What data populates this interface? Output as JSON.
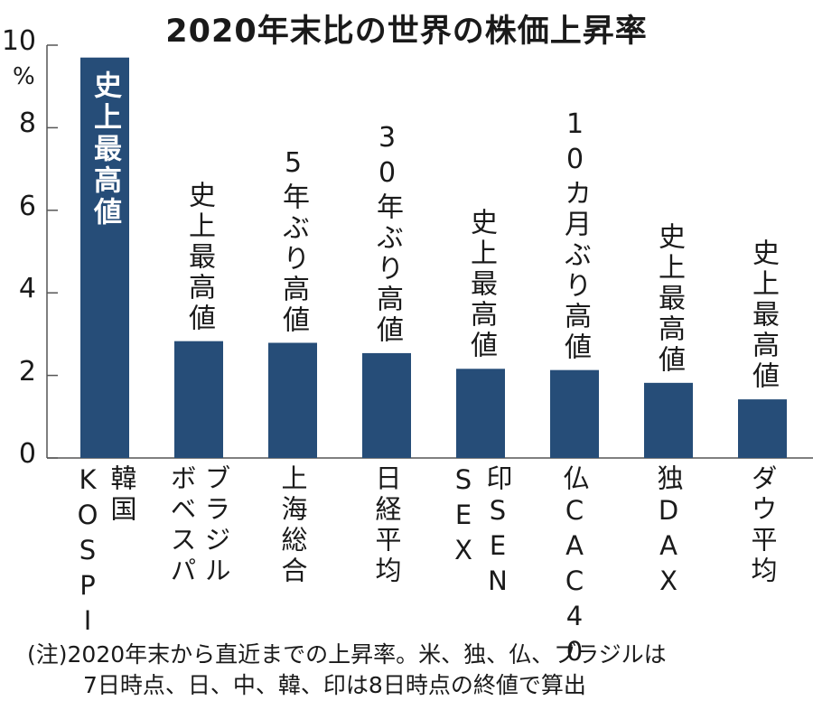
{
  "chart_data": {
    "type": "bar",
    "title": "2020年末比の世界の株価上昇率",
    "ylabel": "%",
    "ylim": [
      0,
      10
    ],
    "yticks": [
      0,
      2,
      4,
      6,
      8,
      10
    ],
    "grid": false,
    "bar_color": "#264d78",
    "categories": [
      {
        "lines": [
          "韓国",
          "KOSPI"
        ]
      },
      {
        "lines": [
          "ブラジル",
          "ボベスパ"
        ]
      },
      {
        "lines": [
          "上海総合"
        ]
      },
      {
        "lines": [
          "日経平均"
        ]
      },
      {
        "lines": [
          "印SEN",
          "SEX"
        ]
      },
      {
        "lines": [
          "仏CAC40"
        ]
      },
      {
        "lines": [
          "独DAX"
        ]
      },
      {
        "lines": [
          "ダウ平均"
        ]
      }
    ],
    "values": [
      9.7,
      2.83,
      2.79,
      2.54,
      2.16,
      2.13,
      1.82,
      1.42
    ],
    "annotations": [
      "史上最高値",
      "史上最高値",
      "5年ぶり高値",
      "30年ぶり高値",
      "史上最高値",
      "10カ月ぶり高値",
      "史上最高値",
      "史上最高値"
    ],
    "annotation_inside": [
      true,
      false,
      false,
      false,
      false,
      false,
      false,
      false
    ]
  },
  "note": [
    "(注)2020年末から直近までの上昇率。米、独、仏、ブラジルは",
    "7日時点、日、中、韓、印は8日時点の終値で算出"
  ]
}
